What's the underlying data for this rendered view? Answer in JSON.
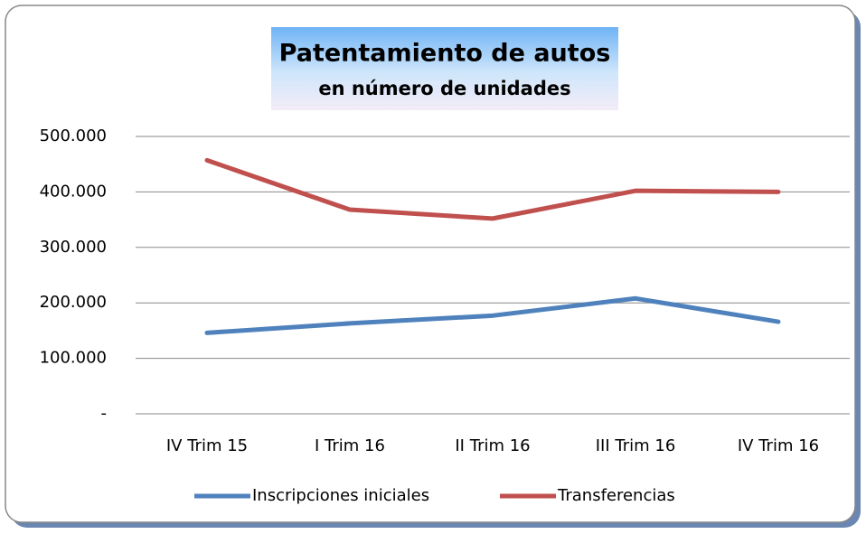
{
  "chart_data": {
    "type": "line",
    "title": "Patentamiento de autos",
    "subtitle": "en número de unidades",
    "categories": [
      "IV Trim 15",
      "I Trim 16",
      "II Trim 16",
      "III Trim 16",
      "IV Trim 16"
    ],
    "series": [
      {
        "name": "Inscripciones iniciales",
        "color": "#4f81bd",
        "values": [
          146000,
          163000,
          177000,
          208000,
          166000
        ]
      },
      {
        "name": "Transferencias",
        "color": "#c0504d",
        "values": [
          457000,
          368000,
          352000,
          402000,
          400000
        ]
      }
    ],
    "ylim": [
      0,
      500000
    ],
    "yticks": [
      {
        "value": 0,
        "label": "-"
      },
      {
        "value": 100000,
        "label": "100.000"
      },
      {
        "value": 200000,
        "label": "200.000"
      },
      {
        "value": 300000,
        "label": "300.000"
      },
      {
        "value": 400000,
        "label": "400.000"
      },
      {
        "value": 500000,
        "label": "500.000"
      }
    ],
    "grid": true,
    "legend": "bottom"
  }
}
